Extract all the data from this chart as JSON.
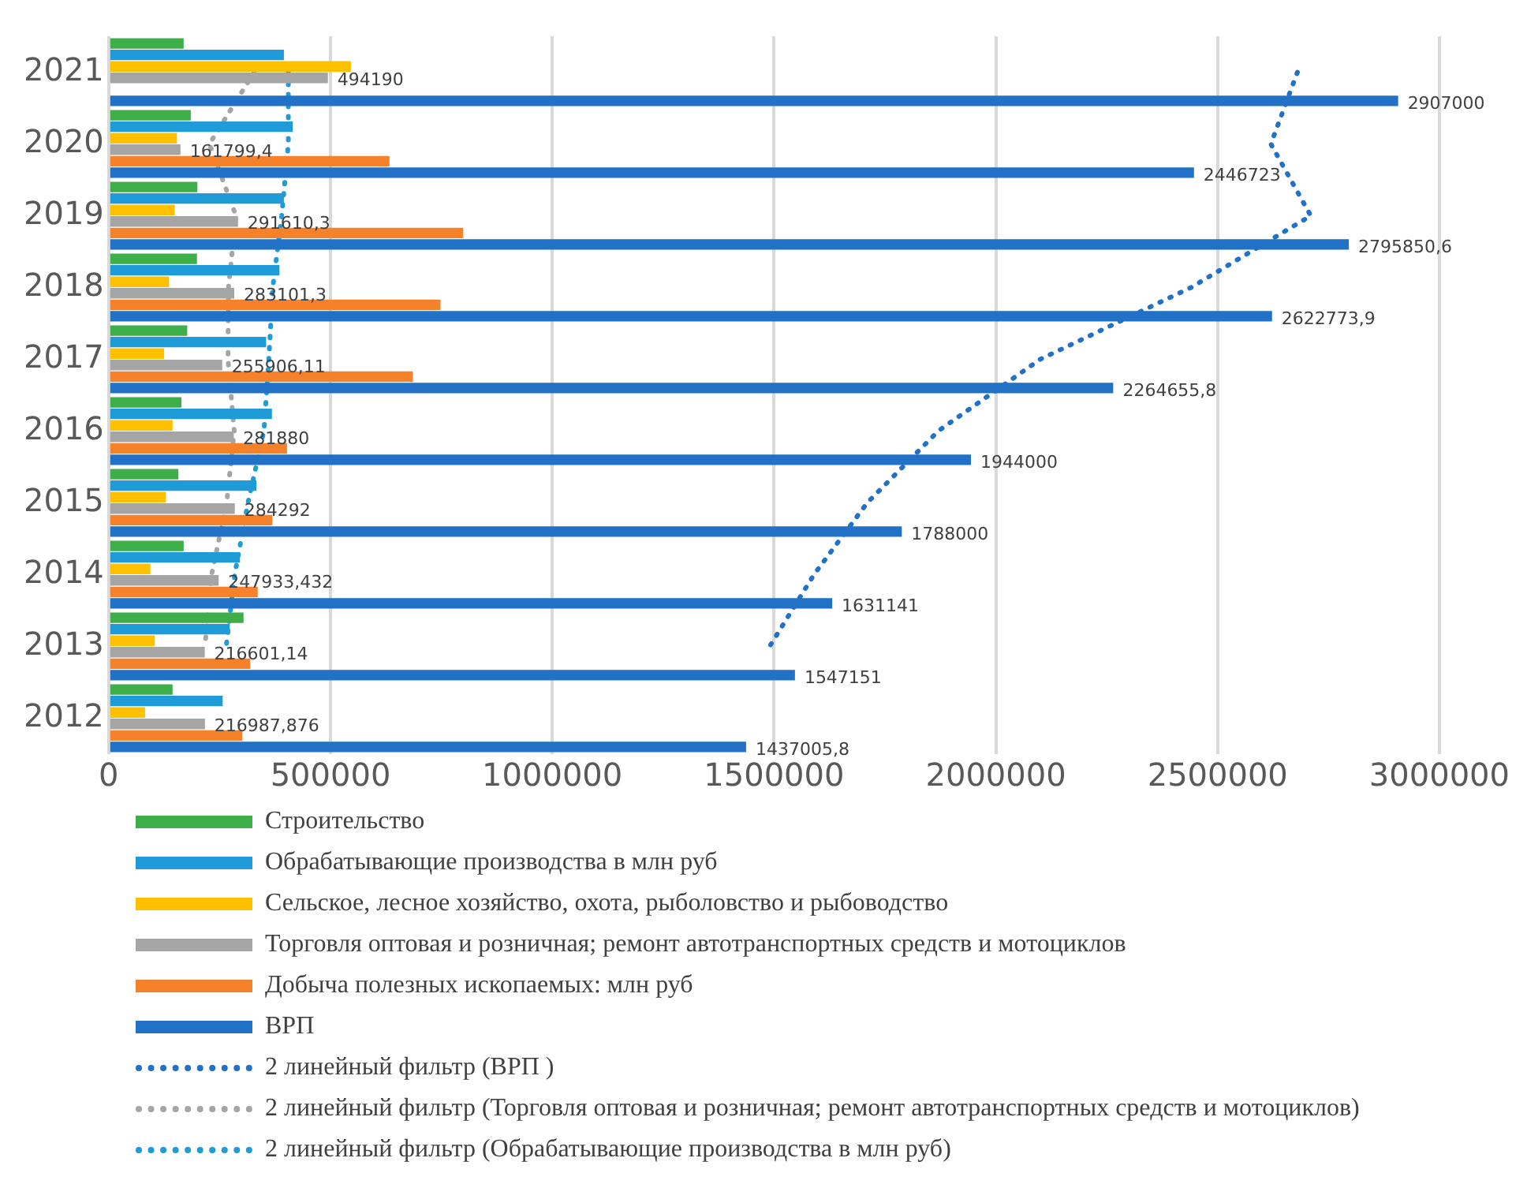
{
  "chart_data": {
    "type": "bar",
    "orientation": "horizontal",
    "categories": [
      "2021",
      "2020",
      "2019",
      "2018",
      "2017",
      "2016",
      "2015",
      "2014",
      "2013",
      "2012"
    ],
    "xlim": [
      0,
      3000000
    ],
    "xticks": [
      0,
      500000,
      1000000,
      1500000,
      2000000,
      2500000,
      3000000
    ],
    "grid": "x",
    "legend": "bottom",
    "series": [
      {
        "name": "Строительство",
        "color": "#3dae48",
        "values": [
          169000,
          185000,
          200000,
          199000,
          177000,
          164000,
          157000,
          169000,
          304000,
          144000
        ]
      },
      {
        "name": "Обрабатывающие производства в млн руб",
        "color": "#1f9bd7",
        "values": [
          395000,
          415000,
          395000,
          385000,
          355000,
          368000,
          333000,
          296000,
          273000,
          257000
        ]
      },
      {
        "name": "Сельское, лесное хозяйство, охота, рыболовство и рыбоводство",
        "color": "#ffc000",
        "values": [
          546000,
          154000,
          149000,
          136000,
          125000,
          144000,
          129000,
          94000,
          104000,
          82000
        ]
      },
      {
        "name": "Торговля оптовая и розничная; ремонт автотранспортных средств и мотоциклов",
        "color": "#a5a5a5",
        "values": [
          494190,
          161799.4,
          291610.3,
          283101.3,
          255906.11,
          281880,
          284292,
          247933.432,
          216601.14,
          216987.876
        ],
        "value_labels": [
          "494190",
          "161799,4",
          "291610,3",
          "283101,3",
          "255906,11",
          "281880",
          "284292",
          "247933,432",
          "216601,14",
          "216987,876"
        ]
      },
      {
        "name": "Добыча полезных ископаемых: млн руб",
        "color": "#f5822a",
        "values": [
          null,
          633000,
          799000,
          748000,
          686000,
          402000,
          369000,
          336000,
          319000,
          301000
        ]
      },
      {
        "name": "ВРП",
        "color": "#2171c6",
        "values": [
          2907000,
          2446723,
          2795850.6,
          2622773.9,
          2264655.8,
          1944000,
          1788000,
          1631141,
          1547151,
          1437005.8
        ],
        "value_labels": [
          "2907000",
          "2446723",
          "2795850,6",
          "2622773,9",
          "2264655,8",
          "1944000",
          "1788000",
          "1631141",
          "1547151",
          "1437005,8"
        ]
      },
      {
        "name": "2 линейный фильтр (ВРП )",
        "type": "line",
        "marker": "none",
        "line_style": "dotted",
        "color": "#2171c6",
        "values": [
          2680000,
          2620000,
          2710000,
          2440000,
          2100000,
          1870000,
          1710000,
          1590000,
          1490000,
          null
        ]
      },
      {
        "name": "2 линейный фильтр (Торговля оптовая и розничная; ремонт автотранспортных средств и мотоциклов)",
        "type": "line",
        "marker": "none",
        "line_style": "dotted",
        "color": "#a5a5a5",
        "values": [
          328000,
          227000,
          287000,
          270000,
          269000,
          283000,
          266000,
          232000,
          217000,
          null
        ]
      },
      {
        "name": "2 линейный фильтр (Обрабатывающие производства в млн руб)",
        "type": "line",
        "marker": "none",
        "line_style": "dotted",
        "color": "#1f9bd7",
        "values": [
          405000,
          405000,
          390000,
          370000,
          361000,
          350000,
          314000,
          284000,
          265000,
          null
        ]
      }
    ]
  }
}
